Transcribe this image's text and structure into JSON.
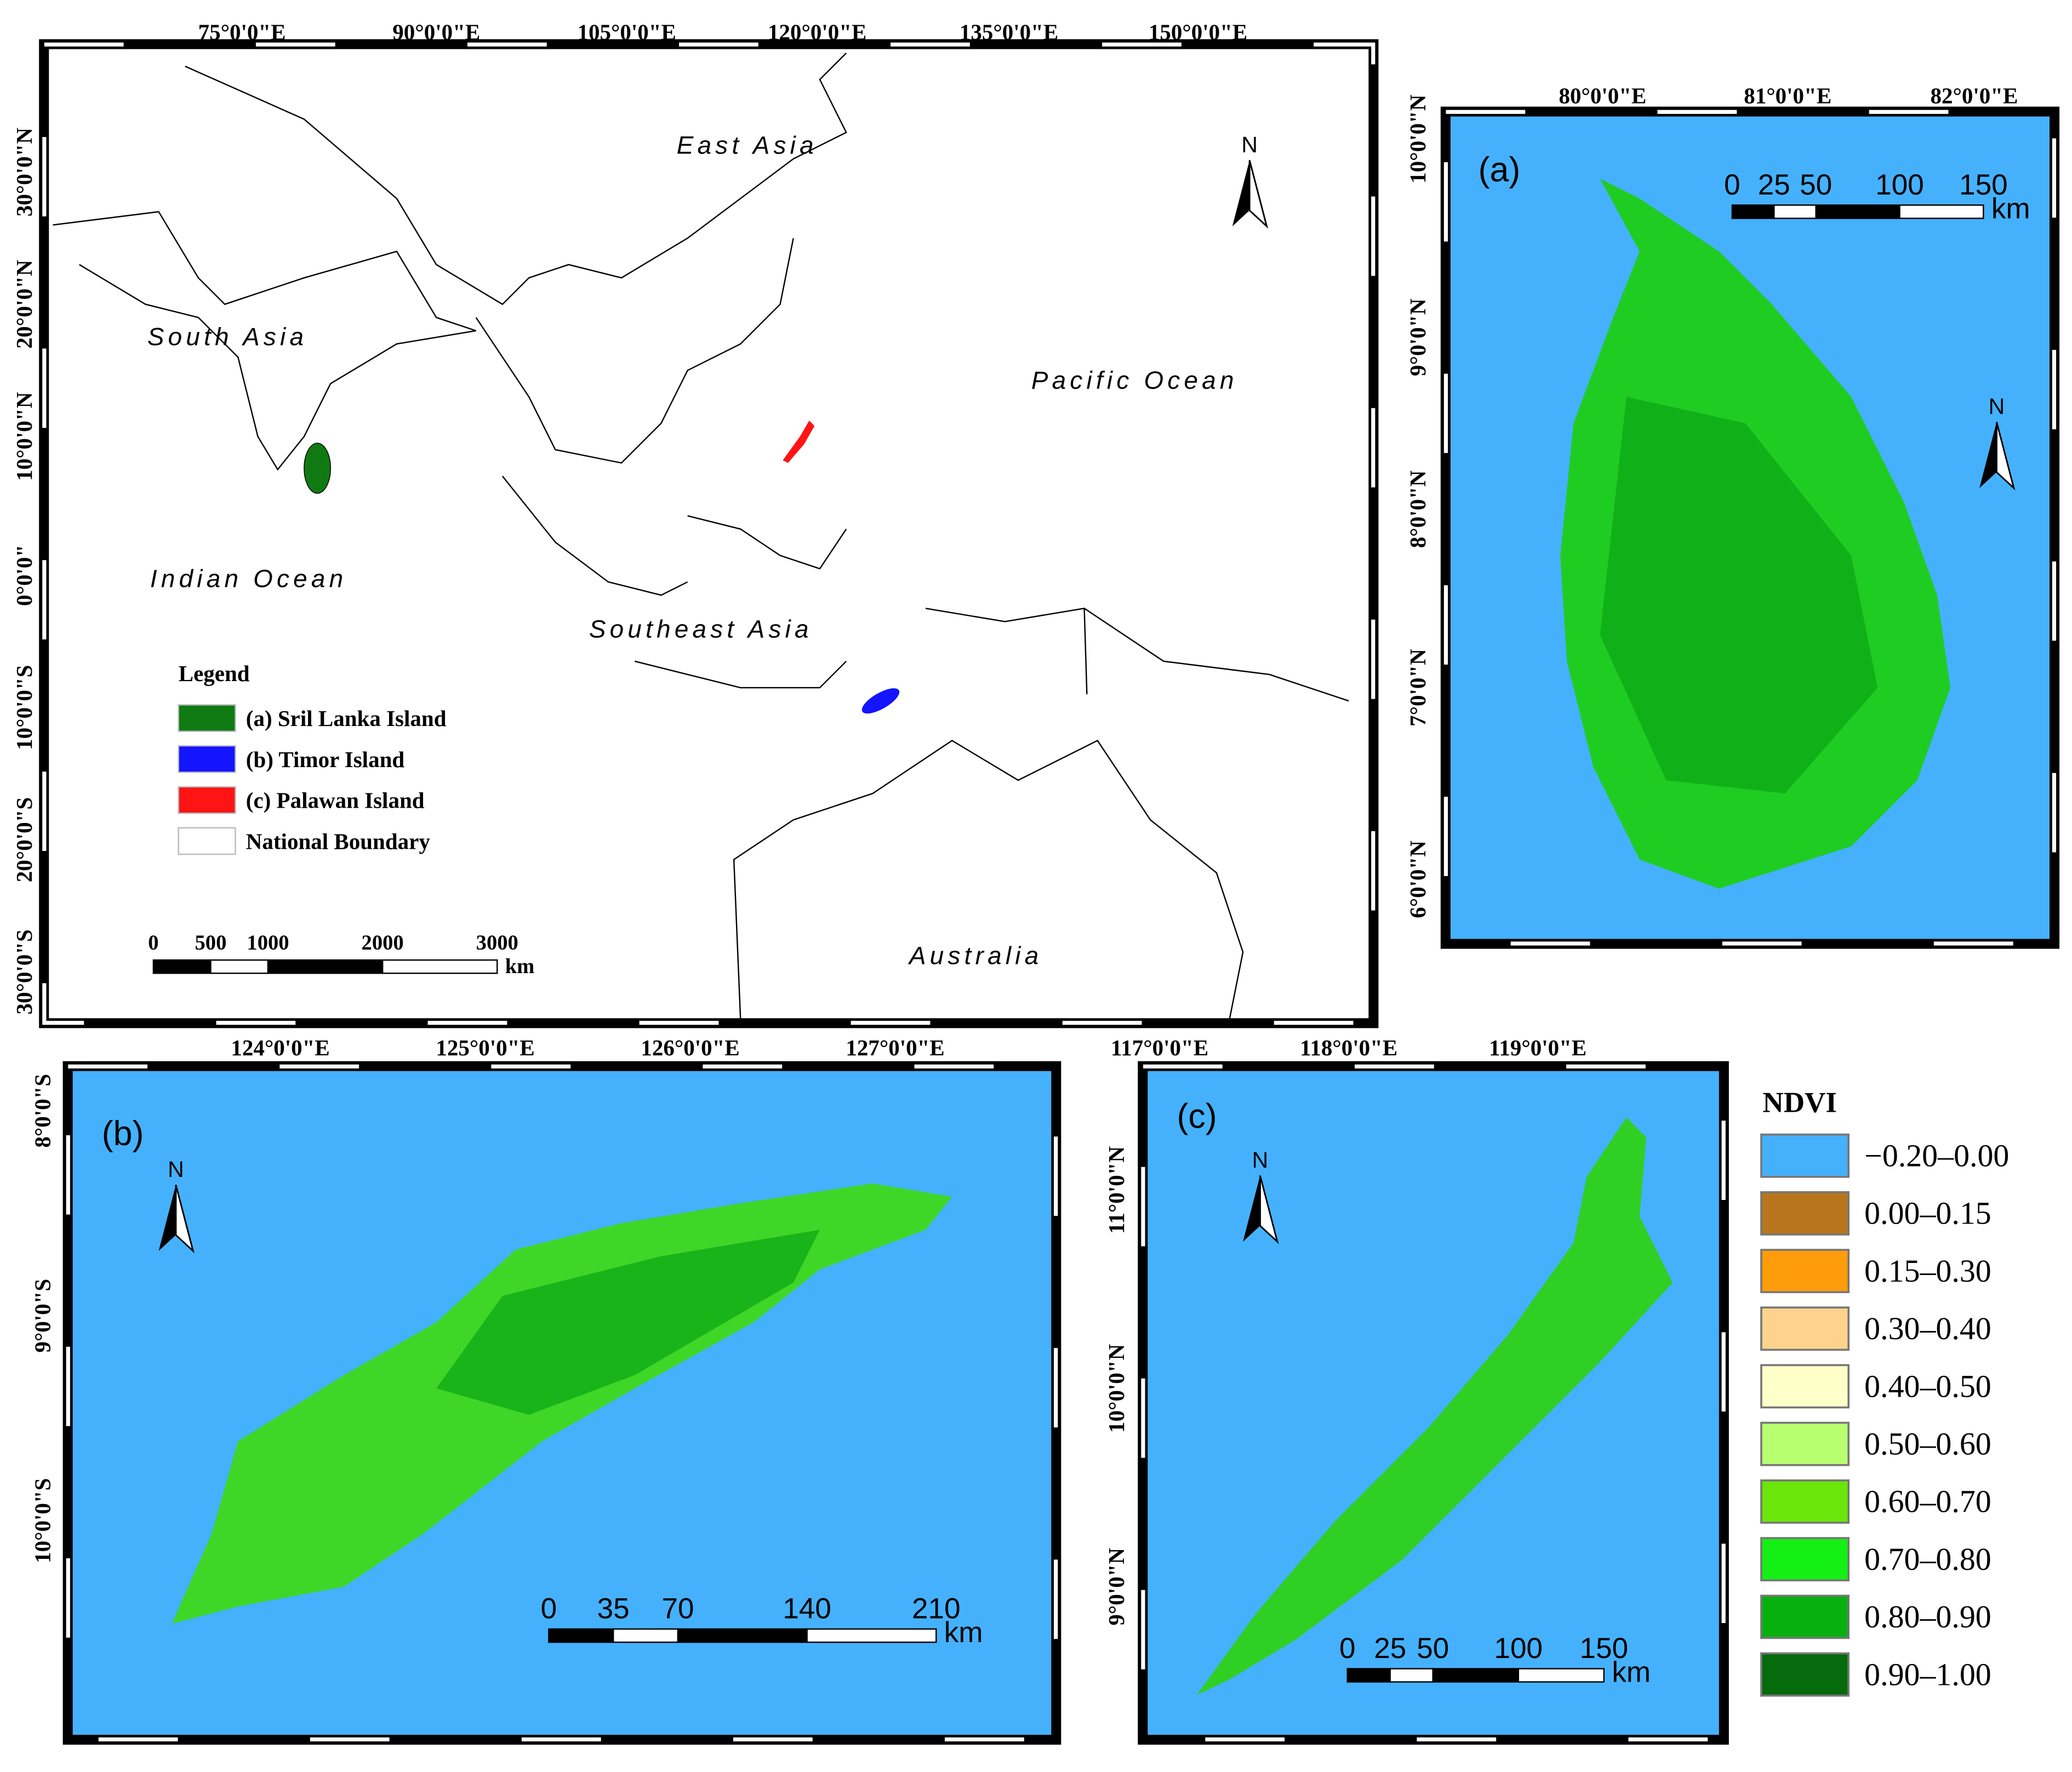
{
  "main_map": {
    "lon_labels": [
      "75°0'0\"E",
      "90°0'0\"E",
      "105°0'0\"E",
      "120°0'0\"E",
      "135°0'0\"E",
      "150°0'0\"E"
    ],
    "lat_labels": [
      "30°0'0\"N",
      "20°0'0\"N",
      "10°0'0\"N",
      "0°0'0\"",
      "10°0'0\"S",
      "20°0'0\"S",
      "30°0'0\"S"
    ],
    "regions": [
      "East Asia",
      "South Asia",
      "Pacific Ocean",
      "Indian Ocean",
      "Southeast Asia",
      "Australia"
    ],
    "north": "N",
    "legend": {
      "title": "Legend",
      "items": [
        {
          "label": "(a) Sril Lanka Island",
          "color": "#0f7a12"
        },
        {
          "label": "(b) Timor Island",
          "color": "#1414ff"
        },
        {
          "label": "(c) Palawan Island",
          "color": "#ff1414"
        },
        {
          "label": "National Boundary",
          "color": "#ffffff"
        }
      ]
    },
    "scale_bar": {
      "ticks": [
        0,
        500,
        1000,
        2000,
        3000
      ],
      "unit": "km"
    }
  },
  "panel_a": {
    "label": "(a)",
    "north": "N",
    "lon_labels": [
      "80°0'0\"E",
      "81°0'0\"E",
      "82°0'0\"E"
    ],
    "lat_labels": [
      "10°0'0\"N",
      "9°0'0\"N",
      "8°0'0\"N",
      "7°0'0\"N",
      "6°0'0\"N"
    ],
    "scale_bar": {
      "ticks": [
        0,
        25,
        50,
        100,
        150
      ],
      "unit": "km"
    }
  },
  "panel_b": {
    "label": "(b)",
    "north": "N",
    "lon_labels": [
      "124°0'0\"E",
      "125°0'0\"E",
      "126°0'0\"E",
      "127°0'0\"E"
    ],
    "lat_labels": [
      "8°0'0\"S",
      "9°0'0\"S",
      "10°0'0\"S"
    ],
    "scale_bar": {
      "ticks": [
        0,
        35,
        70,
        140,
        210
      ],
      "unit": "km"
    }
  },
  "panel_c": {
    "label": "(c)",
    "north": "N",
    "lon_labels": [
      "117°0'0\"E",
      "118°0'0\"E",
      "119°0'0\"E"
    ],
    "lat_labels": [
      "11°0'0\"N",
      "10°0'0\"N",
      "9°0'0\"N"
    ],
    "scale_bar": {
      "ticks": [
        0,
        25,
        50,
        100,
        150
      ],
      "unit": "km"
    }
  },
  "ndvi_legend": {
    "title": "NDVI",
    "classes": [
      {
        "label": "−0.20–0.00",
        "color": "#45b1fd"
      },
      {
        "label": "0.00–0.15",
        "color": "#b8751b"
      },
      {
        "label": "0.15–0.30",
        "color": "#ff9c0a"
      },
      {
        "label": "0.30–0.40",
        "color": "#ffd38c"
      },
      {
        "label": "0.40–0.50",
        "color": "#ffffc9"
      },
      {
        "label": "0.50–0.60",
        "color": "#b8ff70"
      },
      {
        "label": "0.60–0.70",
        "color": "#6ae60a"
      },
      {
        "label": "0.70–0.80",
        "color": "#14f014"
      },
      {
        "label": "0.80–0.90",
        "color": "#07b00e"
      },
      {
        "label": "0.90–1.00",
        "color": "#056b0c"
      }
    ]
  }
}
